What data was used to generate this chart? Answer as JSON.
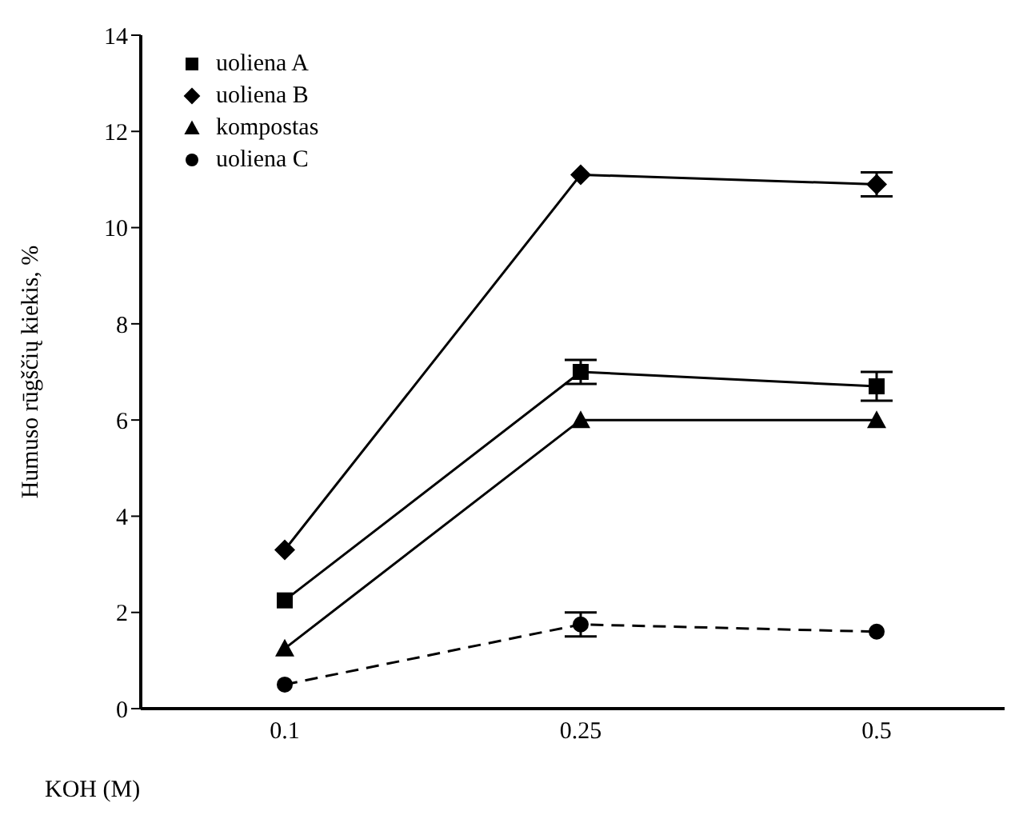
{
  "chart_data": {
    "type": "line",
    "xlabel": "KOH (M)",
    "ylabel": "Humuso rūgščių kiekis, %",
    "categories": [
      "0.1",
      "0.25",
      "0.5"
    ],
    "ylim": [
      0,
      14
    ],
    "yticks": [
      0,
      2,
      4,
      6,
      8,
      10,
      12,
      14
    ],
    "grid": false,
    "legend": "top left",
    "series": [
      {
        "name": "uoliena A",
        "color": "#000000",
        "marker": "square",
        "line_style": "solid",
        "values": [
          2.25,
          7.0,
          6.7
        ],
        "errors": [
          null,
          0.25,
          0.3
        ]
      },
      {
        "name": "uoliena B",
        "color": "#000000",
        "marker": "diamond",
        "line_style": "solid",
        "values": [
          3.3,
          11.1,
          10.9
        ],
        "errors": [
          null,
          null,
          0.25
        ]
      },
      {
        "name": "kompostas",
        "color": "#000000",
        "marker": "triangle",
        "line_style": "solid",
        "values": [
          1.25,
          6.0,
          6.0
        ]
      },
      {
        "name": "uoliena C",
        "color": "#000000",
        "marker": "circle",
        "line_style": "dashed",
        "values": [
          0.5,
          1.75,
          1.6
        ],
        "errors": [
          null,
          0.25,
          null
        ]
      }
    ]
  }
}
